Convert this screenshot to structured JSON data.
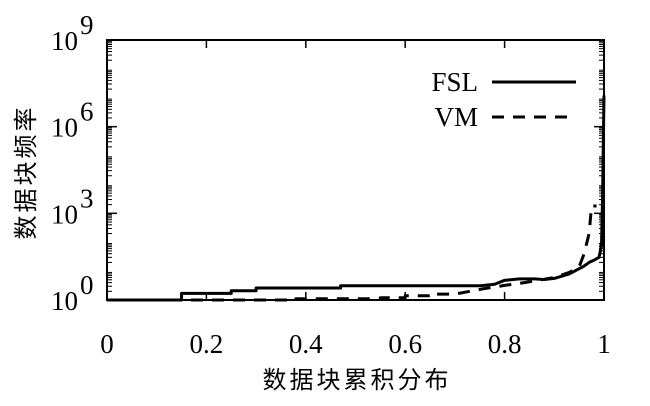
{
  "chart_data": {
    "type": "line",
    "title": "",
    "xlabel": "数据块累积分布",
    "ylabel": "数据块频率",
    "xlim": [
      0,
      1
    ],
    "ylim": [
      1,
      1000000000
    ],
    "yscale": "log",
    "grid": false,
    "legend_position": "top-right",
    "x_ticks": [
      {
        "value": 0,
        "label": "0"
      },
      {
        "value": 0.2,
        "label": "0.2"
      },
      {
        "value": 0.4,
        "label": "0.4"
      },
      {
        "value": 0.6,
        "label": "0.6"
      },
      {
        "value": 0.8,
        "label": "0.8"
      },
      {
        "value": 1,
        "label": "1"
      }
    ],
    "y_ticks": [
      {
        "value": 1,
        "base": "10",
        "exp": "0"
      },
      {
        "value": 1000,
        "base": "10",
        "exp": "3"
      },
      {
        "value": 1000000,
        "base": "10",
        "exp": "6"
      },
      {
        "value": 1000000000,
        "base": "10",
        "exp": "9"
      }
    ],
    "series": [
      {
        "name": "FSL",
        "style": "solid",
        "color": "#000000",
        "points": [
          [
            0,
            1
          ],
          [
            0.15,
            1
          ],
          [
            0.15,
            1.7
          ],
          [
            0.25,
            1.7
          ],
          [
            0.25,
            2.1
          ],
          [
            0.3,
            2.1
          ],
          [
            0.3,
            2.6
          ],
          [
            0.47,
            2.6
          ],
          [
            0.47,
            3.1
          ],
          [
            0.75,
            3.1
          ],
          [
            0.78,
            3.5
          ],
          [
            0.8,
            4.8
          ],
          [
            0.83,
            5.4
          ],
          [
            0.86,
            5.4
          ],
          [
            0.88,
            5.1
          ],
          [
            0.9,
            5.6
          ],
          [
            0.93,
            8
          ],
          [
            0.96,
            15
          ],
          [
            0.97,
            20
          ],
          [
            0.98,
            24
          ],
          [
            0.99,
            30
          ],
          [
            0.995,
            80
          ],
          [
            0.997,
            3000
          ],
          [
            1.0,
            12000000
          ]
        ]
      },
      {
        "name": "VM",
        "style": "dashed",
        "color": "#000000",
        "points": [
          [
            0,
            1
          ],
          [
            0.38,
            1
          ],
          [
            0.38,
            1.1
          ],
          [
            0.55,
            1.1
          ],
          [
            0.55,
            1.2
          ],
          [
            0.6,
            1.2
          ],
          [
            0.6,
            1.4
          ],
          [
            0.66,
            1.4
          ],
          [
            0.66,
            1.6
          ],
          [
            0.7,
            1.6
          ],
          [
            0.73,
            2
          ],
          [
            0.76,
            2.5
          ],
          [
            0.8,
            3.2
          ],
          [
            0.84,
            4
          ],
          [
            0.9,
            6
          ],
          [
            0.93,
            9
          ],
          [
            0.95,
            14
          ],
          [
            0.96,
            40
          ],
          [
            0.97,
            200
          ],
          [
            0.975,
            1800
          ],
          [
            0.985,
            1800
          ]
        ]
      }
    ]
  }
}
